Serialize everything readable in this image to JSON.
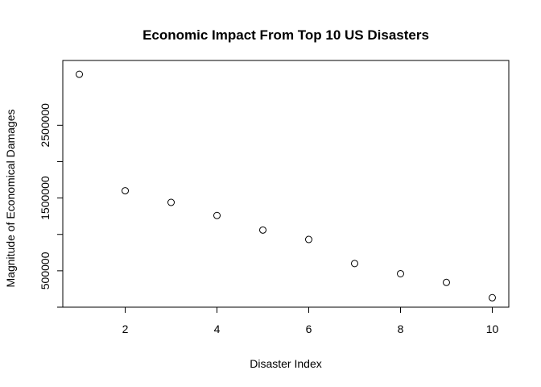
{
  "chart_data": {
    "type": "scatter",
    "title": "Economic Impact From Top 10 US Disasters",
    "xlabel": "Disaster Index",
    "ylabel": "Magnitude of Economical Damages",
    "x": [
      1,
      2,
      3,
      4,
      5,
      6,
      7,
      8,
      9,
      10
    ],
    "y": [
      3200000,
      1600000,
      1440000,
      1260000,
      1060000,
      930000,
      600000,
      460000,
      340000,
      130000
    ],
    "xlim": [
      0.64,
      10.36
    ],
    "ylim": [
      0,
      3390000
    ],
    "xticks": [
      2,
      4,
      6,
      8,
      10
    ],
    "yticks": [
      0,
      500000,
      1000000,
      1500000,
      2000000,
      2500000,
      3000000
    ],
    "ytick_labels_shown": [
      500000,
      1500000,
      2500000
    ],
    "marker": "open-circle",
    "grid": false,
    "legend": "none",
    "colors": {
      "marker": "#000000",
      "axis": "#000000"
    }
  }
}
